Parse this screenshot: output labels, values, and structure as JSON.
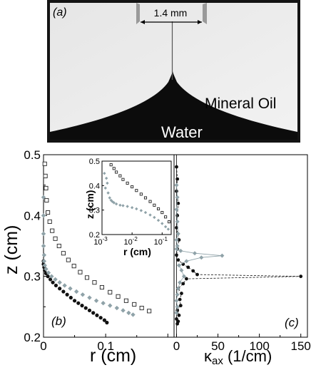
{
  "photo": {
    "panel_label": "(a)",
    "scale_label": "1.4 mm",
    "upper_fluid": "Mineral Oil",
    "lower_fluid": "Water"
  },
  "chart_data": [
    {
      "type": "scatter",
      "panel_label": "(b)",
      "xlabel": "r (cm)",
      "ylabel": "z (cm)",
      "xlim": [
        0,
        0.21
      ],
      "ylim": [
        0.2,
        0.5
      ],
      "xticks": [
        0,
        0.1
      ],
      "xtick_labels": [
        "0",
        "0.1"
      ],
      "yticks": [
        0.2,
        0.3,
        0.4,
        0.5
      ],
      "ytick_labels": [
        "0.2",
        "0.3",
        "0.4",
        "0.5"
      ],
      "grid": false,
      "series": [
        {
          "marker": "filled-circle",
          "color": "#111111",
          "x": [
            0.0,
            0.0,
            0.001,
            0.002,
            0.004,
            0.007,
            0.011,
            0.015,
            0.02,
            0.026,
            0.032,
            0.038,
            0.044,
            0.05,
            0.056,
            0.062,
            0.068,
            0.074,
            0.08,
            0.086,
            0.092,
            0.098,
            0.102
          ],
          "y": [
            0.325,
            0.32,
            0.315,
            0.31,
            0.305,
            0.3,
            0.295,
            0.29,
            0.285,
            0.28,
            0.275,
            0.27,
            0.265,
            0.26,
            0.256,
            0.252,
            0.248,
            0.244,
            0.24,
            0.236,
            0.232,
            0.228,
            0.224
          ]
        },
        {
          "marker": "filled-diamond",
          "color": "#8fa2a8",
          "x": [
            0.0,
            0.0,
            0.0,
            0.0,
            0.001,
            0.001,
            0.002,
            0.004,
            0.008,
            0.013,
            0.019,
            0.026,
            0.034,
            0.043,
            0.053,
            0.063,
            0.074,
            0.085,
            0.096,
            0.107,
            0.118,
            0.128,
            0.137,
            0.144
          ],
          "y": [
            0.43,
            0.4,
            0.37,
            0.35,
            0.335,
            0.325,
            0.318,
            0.312,
            0.306,
            0.3,
            0.295,
            0.29,
            0.285,
            0.28,
            0.275,
            0.27,
            0.265,
            0.26,
            0.256,
            0.252,
            0.248,
            0.244,
            0.24,
            0.237
          ]
        },
        {
          "marker": "open-square",
          "color": "#222222",
          "x": [
            0.002,
            0.003,
            0.004,
            0.005,
            0.007,
            0.01,
            0.014,
            0.019,
            0.025,
            0.032,
            0.04,
            0.049,
            0.059,
            0.07,
            0.082,
            0.094,
            0.107,
            0.12,
            0.133,
            0.146,
            0.158,
            0.17
          ],
          "y": [
            0.485,
            0.465,
            0.445,
            0.425,
            0.405,
            0.39,
            0.375,
            0.362,
            0.35,
            0.338,
            0.327,
            0.317,
            0.307,
            0.298,
            0.29,
            0.282,
            0.274,
            0.267,
            0.26,
            0.254,
            0.248,
            0.243
          ]
        }
      ]
    },
    {
      "type": "scatter",
      "panel_label": "(c)",
      "xlabel": "κ_ax (1/cm)",
      "xlabel_main": "κ",
      "xlabel_sub": "ax",
      "xlabel_unit": " (1/cm)",
      "xlim": [
        -3,
        158
      ],
      "ylim": [
        0.2,
        0.5
      ],
      "xticks": [
        0,
        50,
        100,
        150
      ],
      "xtick_labels": [
        "0",
        "50",
        "100",
        "150"
      ],
      "series": [
        {
          "marker": "filled-circle",
          "color": "#111111",
          "x": [
            0,
            1,
            0,
            2,
            1,
            0,
            3,
            1,
            0,
            2,
            8,
            14,
            20,
            25,
            150,
            12,
            8,
            2,
            6,
            4,
            5,
            1,
            3,
            0,
            2,
            1
          ],
          "y": [
            0.48,
            0.46,
            0.44,
            0.42,
            0.4,
            0.38,
            0.36,
            0.345,
            0.335,
            0.327,
            0.32,
            0.315,
            0.309,
            0.303,
            0.3,
            0.296,
            0.288,
            0.28,
            0.272,
            0.262,
            0.252,
            0.244,
            0.236,
            0.23,
            0.226,
            0.222
          ]
        },
        {
          "marker": "filled-diamond",
          "color": "#8fa2a8",
          "x": [
            0,
            1,
            0,
            1,
            2,
            0,
            1,
            0,
            5,
            22,
            55,
            30,
            12,
            3,
            6,
            9,
            4,
            2,
            1,
            0,
            1,
            0
          ],
          "y": [
            0.45,
            0.43,
            0.41,
            0.39,
            0.37,
            0.36,
            0.35,
            0.345,
            0.342,
            0.338,
            0.334,
            0.331,
            0.325,
            0.318,
            0.31,
            0.3,
            0.29,
            0.28,
            0.27,
            0.26,
            0.25,
            0.24
          ]
        }
      ]
    },
    {
      "type": "scatter",
      "panel_label": "inset",
      "xlabel": "r (cm)",
      "ylabel": "z (cm)",
      "xscale": "log",
      "xlim": [
        0.001,
        0.2
      ],
      "ylim": [
        0.2,
        0.5
      ],
      "xtick_labels": [
        "10",
        "10",
        "10"
      ],
      "xtick_exponents": [
        "-3",
        "-2",
        "-1"
      ],
      "ytick_labels": [
        "0.2",
        "0.3",
        "0.4",
        "0.5"
      ],
      "series": [
        {
          "marker": "filled-diamond",
          "color": "#8fa2a8",
          "x": [
            0.0012,
            0.0014,
            0.0015,
            0.0013,
            0.0016,
            0.0018,
            0.002,
            0.0022,
            0.0025,
            0.003,
            0.004,
            0.005,
            0.007,
            0.01,
            0.014,
            0.02,
            0.028,
            0.04,
            0.055,
            0.075,
            0.1,
            0.13,
            0.16
          ],
          "y": [
            0.45,
            0.43,
            0.41,
            0.39,
            0.37,
            0.35,
            0.34,
            0.335,
            0.33,
            0.325,
            0.32,
            0.318,
            0.315,
            0.31,
            0.305,
            0.298,
            0.29,
            0.28,
            0.27,
            0.258,
            0.245,
            0.232,
            0.222
          ]
        },
        {
          "marker": "open-square",
          "color": "#222222",
          "x": [
            0.002,
            0.0025,
            0.003,
            0.004,
            0.005,
            0.007,
            0.01,
            0.014,
            0.02,
            0.028,
            0.04,
            0.055,
            0.075,
            0.1,
            0.13,
            0.17
          ],
          "y": [
            0.485,
            0.47,
            0.455,
            0.44,
            0.425,
            0.41,
            0.395,
            0.38,
            0.365,
            0.35,
            0.335,
            0.32,
            0.305,
            0.29,
            0.272,
            0.252
          ]
        }
      ]
    }
  ]
}
